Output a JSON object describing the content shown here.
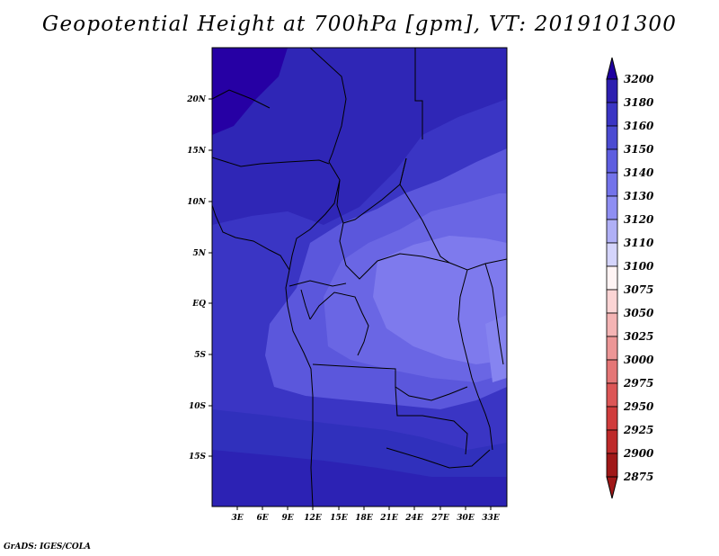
{
  "title": "Geopotential Height at 700hPa [gpm], VT: 2019101300",
  "credit": "GrADS: IGES/COLA",
  "map": {
    "lat_labels": [
      "20N",
      "15N",
      "10N",
      "5N",
      "EQ",
      "5S",
      "10S",
      "15S"
    ],
    "lon_labels": [
      "3E",
      "6E",
      "9E",
      "12E",
      "15E",
      "18E",
      "21E",
      "24E",
      "27E",
      "30E",
      "33E"
    ]
  },
  "colorbar": {
    "levels": [
      "3200",
      "3180",
      "3160",
      "3150",
      "3140",
      "3130",
      "3120",
      "3110",
      "3100",
      "3075",
      "3050",
      "3025",
      "3000",
      "2975",
      "2950",
      "2925",
      "2900",
      "2875"
    ],
    "colors": [
      "#1f00a0",
      "#2d1fb0",
      "#3a35c4",
      "#4b4bd2",
      "#5e5ee0",
      "#7373ea",
      "#8e8ef2",
      "#b0b0f6",
      "#d4d4fb",
      "#fff4f4",
      "#fbd4d4",
      "#f4b4b4",
      "#ec9696",
      "#e47676",
      "#dc5656",
      "#d03c3c",
      "#be2a2a",
      "#a01818"
    ]
  }
}
